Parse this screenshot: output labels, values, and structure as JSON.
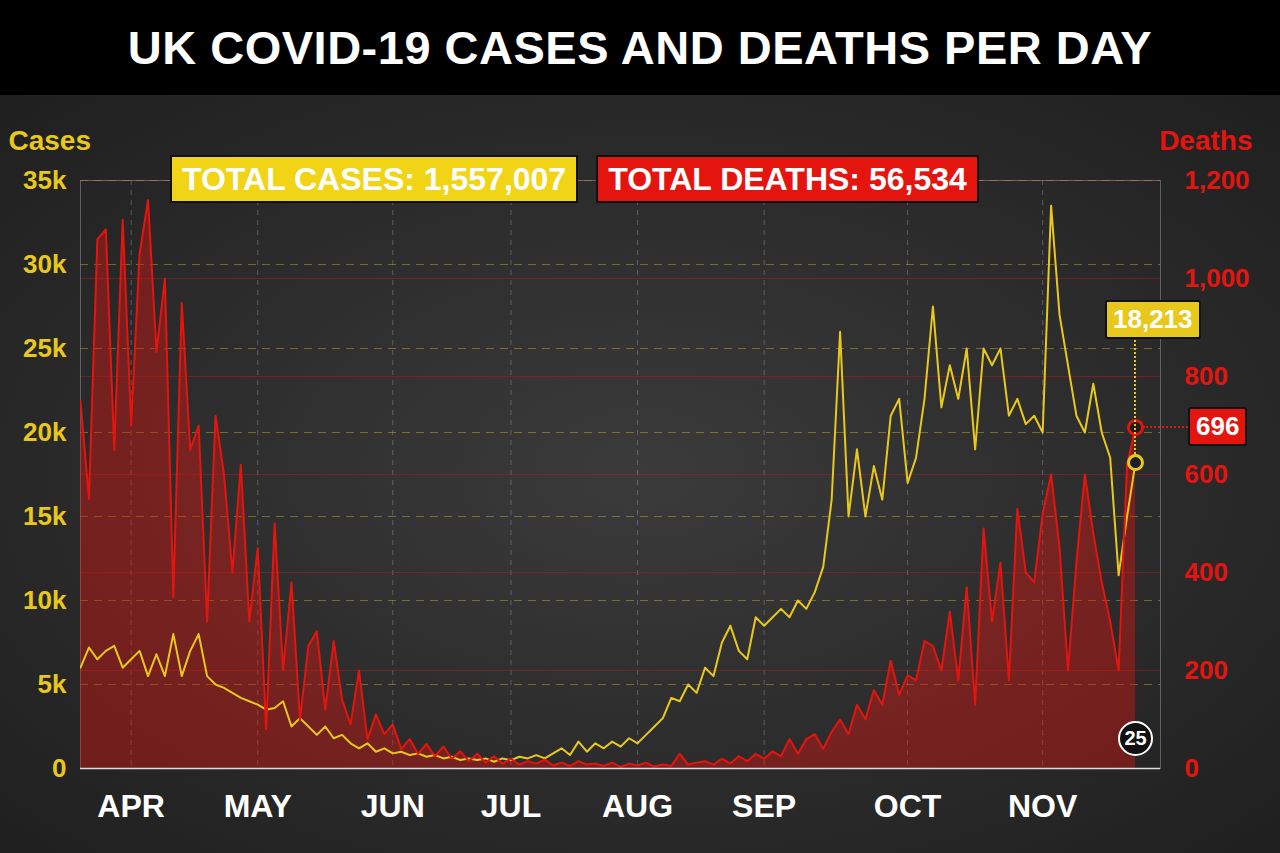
{
  "chart_data": {
    "type": "line",
    "title": "UK COVID-19 CASES AND DEATHS PER DAY",
    "categories": [
      null,
      null,
      null,
      null,
      null,
      null,
      "APR",
      null,
      null,
      null,
      null,
      null,
      null,
      null,
      null,
      null,
      null,
      null,
      null,
      null,
      null,
      "MAY",
      null,
      null,
      null,
      null,
      null,
      null,
      null,
      null,
      null,
      null,
      null,
      null,
      null,
      null,
      null,
      "JUN",
      null,
      null,
      null,
      null,
      null,
      null,
      null,
      null,
      null,
      null,
      null,
      null,
      null,
      "JUL",
      null,
      null,
      null,
      null,
      null,
      null,
      null,
      null,
      null,
      null,
      null,
      null,
      null,
      null,
      "AUG",
      null,
      null,
      null,
      null,
      null,
      null,
      null,
      null,
      null,
      null,
      null,
      null,
      null,
      null,
      "SEP",
      null,
      null,
      null,
      null,
      null,
      null,
      null,
      null,
      null,
      null,
      null,
      null,
      null,
      null,
      null,
      null,
      "OCT",
      null,
      null,
      null,
      null,
      null,
      null,
      null,
      null,
      null,
      null,
      null,
      null,
      null,
      null,
      null,
      "NOV",
      null,
      null,
      null,
      null,
      null,
      null,
      null,
      null,
      null,
      null,
      null
    ],
    "series": [
      {
        "name": "Cases",
        "color": "#e9c81d",
        "type": "line",
        "data_labels": true,
        "values": [
          6000,
          7200,
          6500,
          7000,
          7300,
          6000,
          6500,
          7000,
          5500,
          6800,
          5500,
          8000,
          5500,
          7000,
          8000,
          5500,
          5000,
          4800,
          4500,
          4200,
          4000,
          3800,
          3500,
          3600,
          4000,
          2500,
          3000,
          2500,
          2000,
          2500,
          1800,
          2000,
          1500,
          1200,
          1500,
          1000,
          1200,
          900,
          1000,
          800,
          900,
          700,
          800,
          600,
          700,
          500,
          600,
          500,
          600,
          400,
          600,
          500,
          700,
          600,
          800,
          600,
          900,
          1200,
          800,
          1600,
          1000,
          1500,
          1200,
          1600,
          1300,
          1800,
          1500,
          2000,
          2500,
          3000,
          4200,
          4000,
          5000,
          4500,
          6000,
          5500,
          7500,
          8500,
          7000,
          6500,
          9000,
          8500,
          9000,
          9500,
          9000,
          10000,
          9500,
          10500,
          12000,
          16000,
          26000,
          15000,
          19000,
          15000,
          18000,
          16000,
          21000,
          22000,
          17000,
          18500,
          22000,
          27500,
          21500,
          24000,
          22000,
          25000,
          19000,
          25000,
          24000,
          25000,
          21000,
          22000,
          20500,
          21000,
          20000,
          33500,
          27000,
          24000,
          21000,
          20000,
          22900,
          20000,
          18500,
          11500,
          15000,
          18213
        ],
        "value_labels": [
          null,
          null,
          null,
          null,
          null,
          null,
          null,
          null,
          null,
          null,
          null,
          null,
          null,
          null,
          null,
          null,
          null,
          null,
          null,
          null,
          null,
          null,
          null,
          null,
          null,
          null,
          null,
          null,
          null,
          null,
          null,
          null,
          null,
          null,
          null,
          null,
          null,
          null,
          null,
          null,
          null,
          null,
          null,
          null,
          null,
          null,
          null,
          null,
          null,
          null,
          null,
          null,
          null,
          null,
          null,
          null,
          null,
          null,
          null,
          null,
          null,
          null,
          null,
          null,
          null,
          null,
          null,
          null,
          null,
          null,
          null,
          null,
          null,
          null,
          null,
          null,
          null,
          null,
          null,
          null,
          null,
          null,
          null,
          null,
          null,
          null,
          null,
          null,
          null,
          null,
          null,
          null,
          null,
          null,
          null,
          null,
          null,
          null,
          null,
          null,
          null,
          null,
          null,
          null,
          null,
          null,
          null,
          null,
          null,
          null,
          null,
          null,
          null,
          null,
          null,
          null,
          null,
          null,
          null,
          null,
          null,
          null,
          null,
          null,
          null,
          "18,213"
        ]
      },
      {
        "name": "Deaths",
        "color": "#e4150f",
        "type": "area",
        "axis": "y2",
        "data_labels": true,
        "values": [
          750,
          550,
          1080,
          1100,
          650,
          1120,
          700,
          1050,
          1160,
          850,
          1000,
          350,
          950,
          650,
          700,
          300,
          720,
          600,
          400,
          620,
          300,
          450,
          80,
          500,
          200,
          380,
          100,
          250,
          280,
          120,
          260,
          140,
          90,
          200,
          60,
          110,
          70,
          90,
          40,
          60,
          30,
          50,
          25,
          45,
          20,
          35,
          15,
          30,
          12,
          25,
          10,
          20,
          8,
          15,
          10,
          18,
          6,
          12,
          5,
          15,
          8,
          10,
          5,
          12,
          3,
          10,
          6,
          12,
          4,
          8,
          5,
          30,
          8,
          12,
          15,
          8,
          20,
          10,
          25,
          15,
          30,
          20,
          35,
          25,
          60,
          30,
          60,
          70,
          40,
          75,
          100,
          70,
          130,
          100,
          160,
          130,
          220,
          150,
          190,
          180,
          260,
          250,
          200,
          320,
          180,
          370,
          130,
          490,
          300,
          420,
          180,
          530,
          400,
          380,
          520,
          600,
          450,
          200,
          420,
          600,
          480,
          380,
          300,
          200,
          620,
          696
        ],
        "value_labels": [
          null,
          null,
          null,
          null,
          null,
          null,
          null,
          null,
          null,
          null,
          null,
          null,
          null,
          null,
          null,
          null,
          null,
          null,
          null,
          null,
          null,
          null,
          null,
          null,
          null,
          null,
          null,
          null,
          null,
          null,
          null,
          null,
          null,
          null,
          null,
          null,
          null,
          null,
          null,
          null,
          null,
          null,
          null,
          null,
          null,
          null,
          null,
          null,
          null,
          null,
          null,
          null,
          null,
          null,
          null,
          null,
          null,
          null,
          null,
          null,
          null,
          null,
          null,
          null,
          null,
          null,
          null,
          null,
          null,
          null,
          null,
          null,
          null,
          null,
          null,
          null,
          null,
          null,
          null,
          null,
          null,
          null,
          null,
          null,
          null,
          null,
          null,
          null,
          null,
          null,
          null,
          null,
          null,
          null,
          null,
          null,
          null,
          null,
          null,
          null,
          null,
          null,
          null,
          null,
          null,
          null,
          null,
          null,
          null,
          null,
          null,
          null,
          null,
          null,
          null,
          null,
          null,
          null,
          null,
          null,
          null,
          null,
          null,
          null,
          null,
          "696"
        ]
      }
    ],
    "ylim": [
      0,
      35000
    ],
    "yticks": [
      0,
      {
        "value": 5000,
        "label": "5k"
      },
      {
        "value": 10000,
        "label": "10k"
      },
      {
        "value": 15000,
        "label": "15k"
      },
      {
        "value": 20000,
        "label": "20k"
      },
      {
        "value": 25000,
        "label": "25k"
      },
      {
        "value": 30000,
        "label": "30k"
      },
      {
        "value": 35000,
        "label": "35k"
      }
    ],
    "y2lim": [
      0,
      1200
    ],
    "y2ticks": [
      0,
      200,
      400,
      600,
      800,
      {
        "value": 1000,
        "label": "1,000"
      },
      {
        "value": 1200,
        "label": "1,200"
      }
    ],
    "grid": true,
    "annotations": [
      {
        "text": "TOTAL CASES: 1,557,007",
        "color": "#f2d416"
      },
      {
        "text": "TOTAL DEATHS: 56,534",
        "color": "#e4150f"
      }
    ],
    "date_label": "25"
  }
}
